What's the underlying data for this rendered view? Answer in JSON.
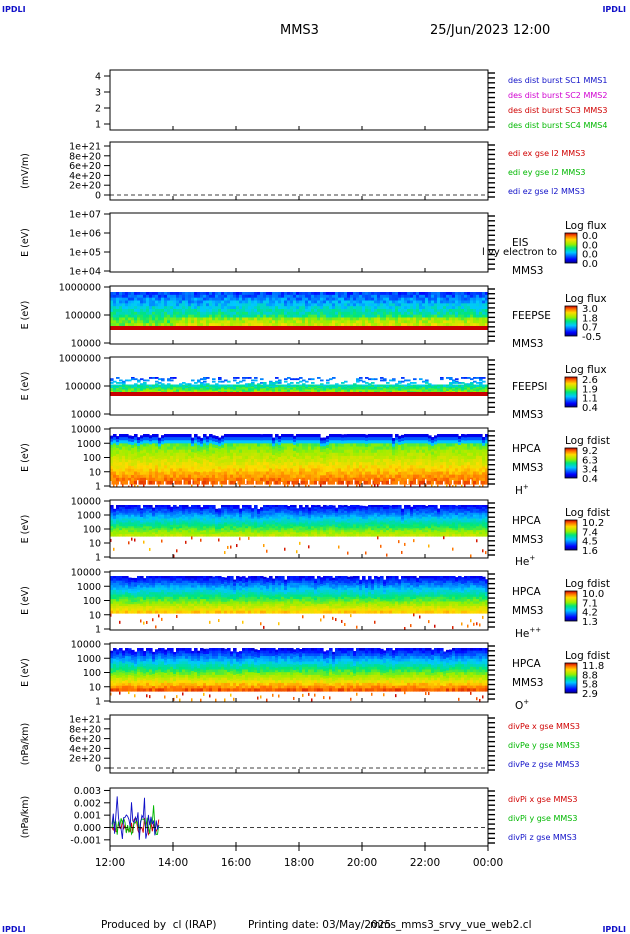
{
  "header": {
    "corner_left": "IPDLI",
    "corner_right": "IPDLI",
    "spacecraft": "MMS3",
    "datetime": "25/Jun/2023 12:00"
  },
  "footer": {
    "corner_left": "IPDLI",
    "corner_right": "IPDLI",
    "produced_by": "Produced by  cl (IRAP)",
    "printing_date": "Printing date: 03/May/2025",
    "filename": "mms_mms3_srvy_vue_web2.cl"
  },
  "colors": {
    "blue": "#1010c8",
    "magenta": "#d000d0",
    "red": "#d00000",
    "green": "#00b800"
  },
  "chart_data": [
    {
      "id": "burst",
      "type": "line",
      "ylabel": "",
      "yticks": [
        "4",
        "3",
        "2",
        "1"
      ],
      "legend": [
        {
          "text": "des dist burst SC1 MMS1",
          "color": "blue"
        },
        {
          "text": "des dist burst SC2 MMS2",
          "color": "magenta"
        },
        {
          "text": "des dist burst SC3 MMS3",
          "color": "red"
        },
        {
          "text": "des dist burst SC4 MMS4",
          "color": "green"
        }
      ]
    },
    {
      "id": "edi",
      "type": "line",
      "ylabel": "(mV/m)",
      "yticks": [
        "1e+21",
        "8e+20",
        "6e+20",
        "4e+20",
        "2e+20",
        "0"
      ],
      "dashed_zero": true,
      "legend": [
        {
          "text": "edi ex gse l2 MMS3",
          "color": "red"
        },
        {
          "text": "edi ey gse l2 MMS3",
          "color": "green"
        },
        {
          "text": "edi ez gse l2 MMS3",
          "color": "blue"
        }
      ]
    },
    {
      "id": "eis",
      "type": "heatmap",
      "ylabel": "E (eV)",
      "yticks": [
        "1e+07",
        "1e+06",
        "1e+05",
        "1e+04"
      ],
      "instrument": [
        "EIS",
        "MMS3"
      ],
      "overlay_text": "l  vy electron to",
      "colorbar": {
        "title": "Log flux",
        "ticks": [
          "0.0",
          "0.0",
          "0.0",
          "0.0"
        ]
      },
      "empty": true
    },
    {
      "id": "feepse",
      "type": "heatmap",
      "ylabel": "E (eV)",
      "yticks": [
        "1000000",
        "100000",
        "10000"
      ],
      "instrument": [
        "FEEPSE",
        "MMS3"
      ],
      "colorbar": {
        "title": "Log flux",
        "ticks": [
          "3.0",
          "1.8",
          "0.7",
          "-0.5"
        ]
      }
    },
    {
      "id": "feepsi",
      "type": "heatmap",
      "ylabel": "E (eV)",
      "yticks": [
        "1000000",
        "100000",
        "10000"
      ],
      "instrument": [
        "FEEPSI",
        "MMS3"
      ],
      "colorbar": {
        "title": "Log flux",
        "ticks": [
          "2.6",
          "1.9",
          "1.1",
          "0.4"
        ]
      }
    },
    {
      "id": "hpca_h",
      "type": "heatmap",
      "ylabel": "E (eV)",
      "yticks": [
        "10000",
        "1000",
        "100",
        "10",
        "1"
      ],
      "instrument": [
        "HPCA",
        "MMS3"
      ],
      "species": "H",
      "species_sup": "+",
      "colorbar": {
        "title": "Log fdist",
        "ticks": [
          "9.2",
          "6.3",
          "3.4",
          "0.4"
        ]
      }
    },
    {
      "id": "hpca_he",
      "type": "heatmap",
      "ylabel": "E (eV)",
      "yticks": [
        "10000",
        "1000",
        "100",
        "10",
        "1"
      ],
      "instrument": [
        "HPCA",
        "MMS3"
      ],
      "species": "He",
      "species_sup": "+",
      "colorbar": {
        "title": "Log fdist",
        "ticks": [
          "10.2",
          "7.4",
          "4.5",
          "1.6"
        ]
      }
    },
    {
      "id": "hpca_hepp",
      "type": "heatmap",
      "ylabel": "E (eV)",
      "yticks": [
        "10000",
        "1000",
        "100",
        "10",
        "1"
      ],
      "instrument": [
        "HPCA",
        "MMS3"
      ],
      "species": "He",
      "species_sup": "++",
      "colorbar": {
        "title": "Log fdist",
        "ticks": [
          "10.0",
          "7.1",
          "4.2",
          "1.3"
        ]
      }
    },
    {
      "id": "hpca_o",
      "type": "heatmap",
      "ylabel": "E (eV)",
      "yticks": [
        "10000",
        "1000",
        "100",
        "10",
        "1"
      ],
      "instrument": [
        "HPCA",
        "MMS3"
      ],
      "species": "O",
      "species_sup": "+",
      "colorbar": {
        "title": "Log fdist",
        "ticks": [
          "11.8",
          "8.8",
          "5.8",
          "2.9"
        ]
      }
    },
    {
      "id": "divpe",
      "type": "line",
      "ylabel": "(nPa/km)",
      "yticks": [
        "1e+21",
        "8e+20",
        "6e+20",
        "4e+20",
        "2e+20",
        "0"
      ],
      "dashed_zero": true,
      "legend": [
        {
          "text": "divPe x gse MMS3",
          "color": "red"
        },
        {
          "text": "divPe y gse MMS3",
          "color": "green"
        },
        {
          "text": "divPe z gse MMS3",
          "color": "blue"
        }
      ]
    },
    {
      "id": "divpi",
      "type": "line",
      "ylabel": "(nPa/km)",
      "yticks": [
        "0.003",
        "0.002",
        "0.001",
        "0.000",
        "-0.001"
      ],
      "ylim": [
        -0.0015,
        0.0032
      ],
      "dashed_zero": true,
      "data_end_fraction": 0.13,
      "legend": [
        {
          "text": "divPi x gse MMS3",
          "color": "red"
        },
        {
          "text": "divPi y gse MMS3",
          "color": "green"
        },
        {
          "text": "divPi z gse MMS3",
          "color": "blue"
        }
      ]
    }
  ],
  "xaxis": {
    "ticks": [
      "12:00",
      "14:00",
      "16:00",
      "18:00",
      "20:00",
      "22:00",
      "00:00"
    ],
    "range_hours": [
      12,
      24
    ]
  }
}
